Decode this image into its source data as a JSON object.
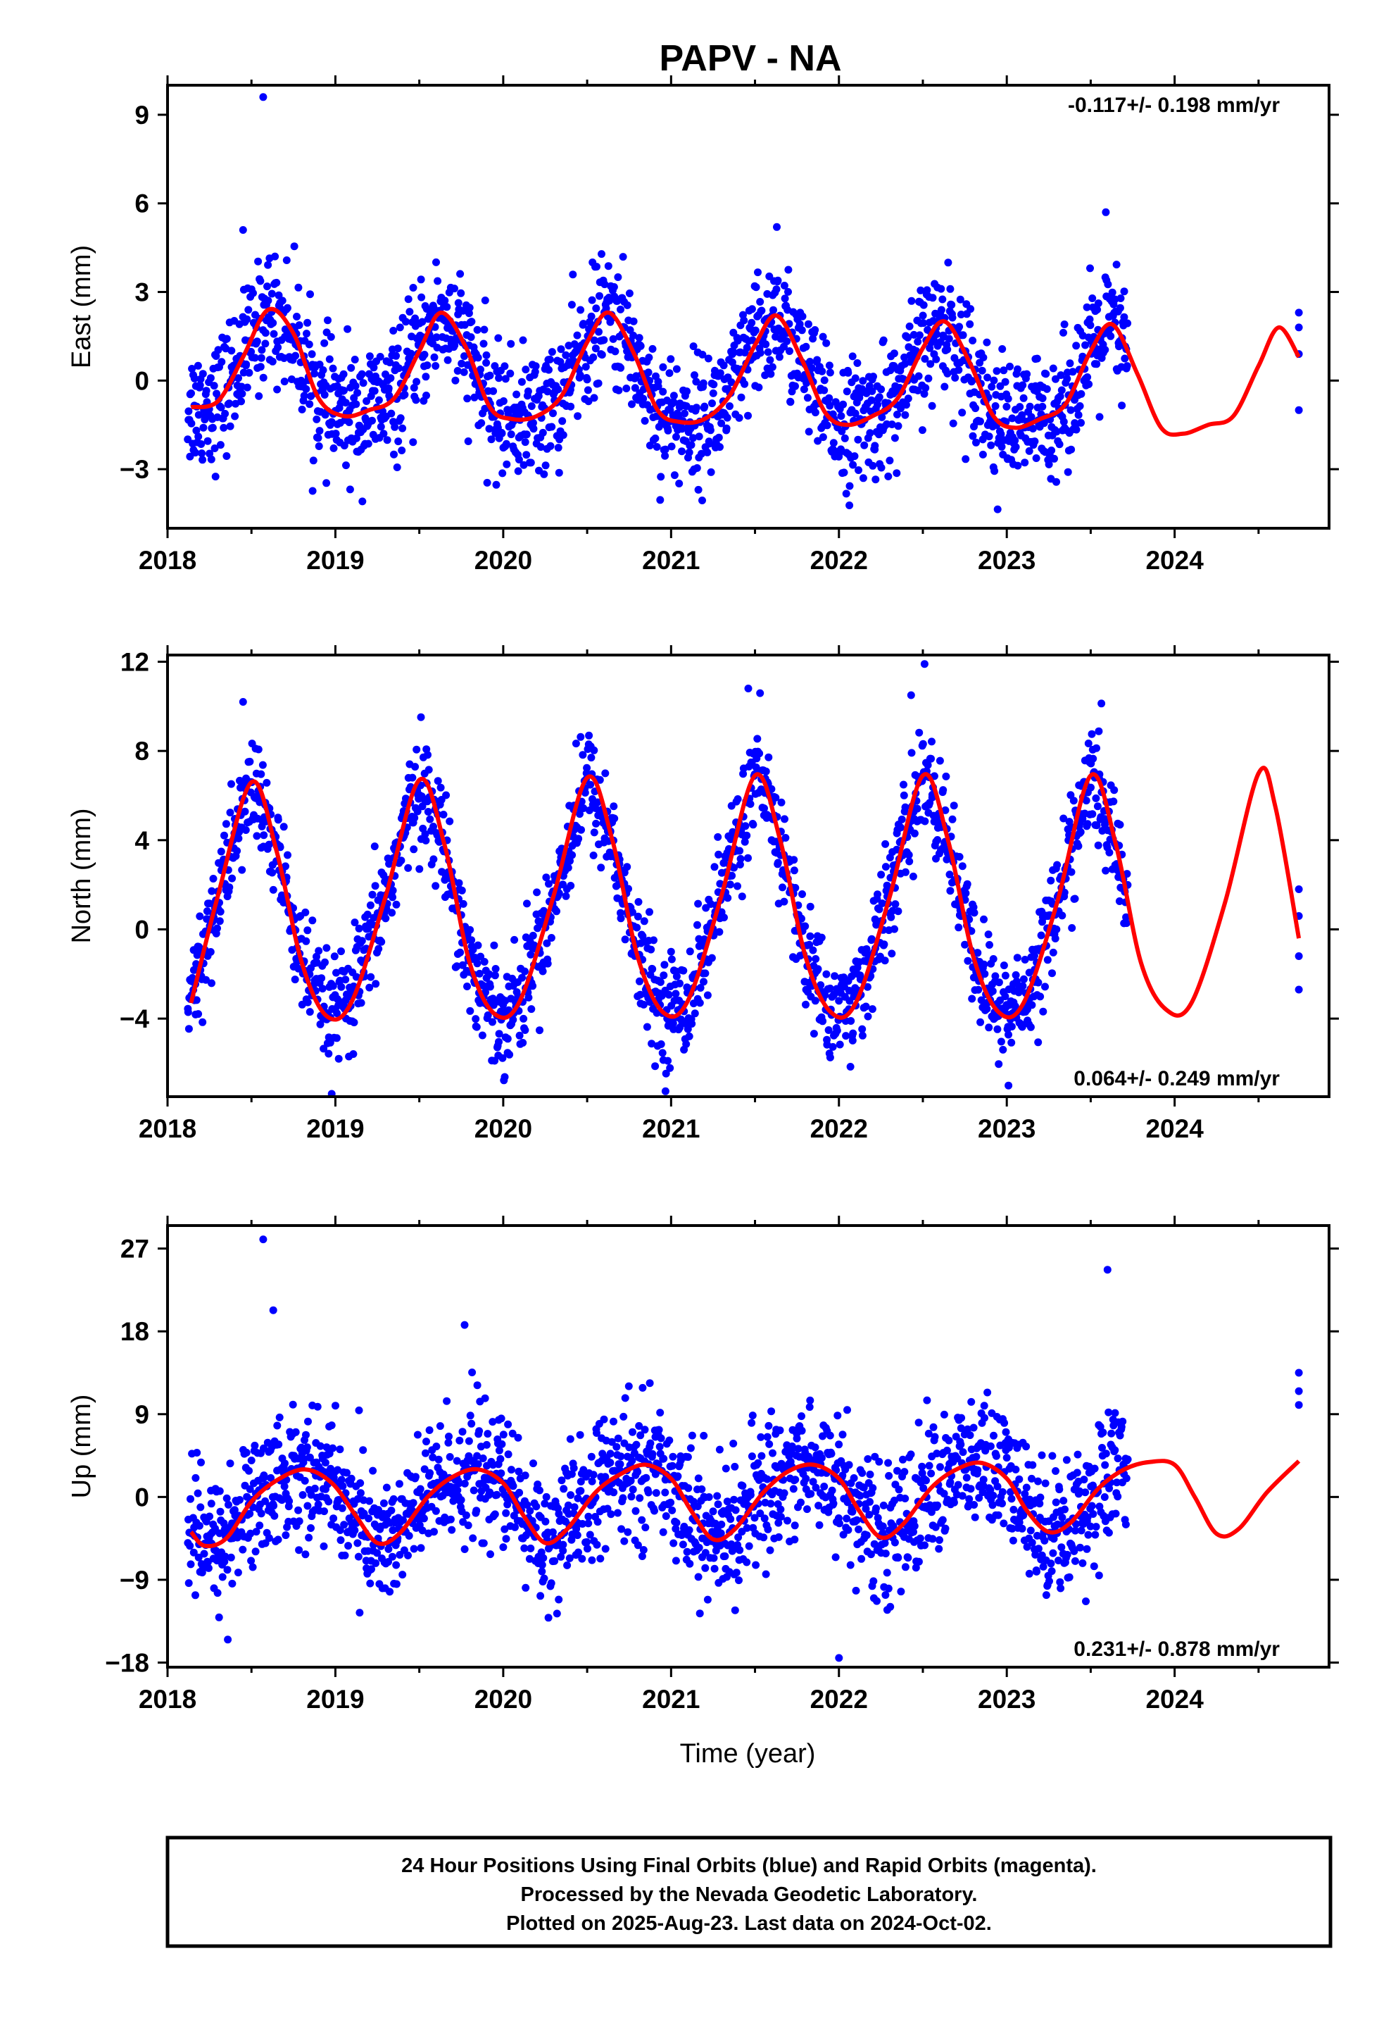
{
  "title": "PAPV - NA",
  "xlabel": "Time (year)",
  "footer": {
    "line1": "24 Hour Positions Using Final Orbits (blue) and Rapid Orbits (magenta).",
    "line2": "Processed by the Nevada Geodetic Laboratory.",
    "line3": "Plotted on 2025-Aug-23. Last data on 2024-Oct-02."
  },
  "colors": {
    "points": "#0000ff",
    "fit": "#ff0000",
    "frame": "#000000"
  },
  "chart_data": [
    {
      "type": "scatter",
      "ylabel": "East (mm)",
      "trend_label": "-0.117+/- 0.198 mm/yr",
      "trend_position": "top-right",
      "xlim": [
        2018.0,
        2024.92
      ],
      "ylim": [
        -5,
        10
      ],
      "xticks": [
        2018,
        2019,
        2020,
        2021,
        2022,
        2023,
        2024
      ],
      "yticks": [
        -3,
        0,
        3,
        6,
        9
      ],
      "data_span": [
        2018.12,
        2023.72
      ],
      "late_points": [
        [
          2024.74,
          2.3
        ],
        [
          2024.74,
          1.8
        ],
        [
          2024.74,
          0.9
        ],
        [
          2024.74,
          -1.0
        ]
      ],
      "outliers": [
        [
          2018.57,
          9.6
        ],
        [
          2018.45,
          5.1
        ],
        [
          2021.63,
          5.2
        ],
        [
          2023.59,
          5.7
        ]
      ],
      "fit": {
        "x": [
          2018.14,
          2018.3,
          2018.45,
          2018.6,
          2018.75,
          2018.9,
          2019.05,
          2019.2,
          2019.35,
          2019.5,
          2019.63,
          2019.78,
          2019.92,
          2020.05,
          2020.2,
          2020.35,
          2020.5,
          2020.63,
          2020.78,
          2020.92,
          2021.05,
          2021.2,
          2021.35,
          2021.5,
          2021.63,
          2021.78,
          2021.92,
          2022.05,
          2022.2,
          2022.35,
          2022.5,
          2022.63,
          2022.78,
          2022.92,
          2023.05,
          2023.2,
          2023.35,
          2023.5,
          2023.63,
          2023.78,
          2023.92,
          2024.05,
          2024.2,
          2024.35,
          2024.5,
          2024.62,
          2024.74
        ],
        "y": [
          -0.9,
          -0.7,
          0.8,
          2.4,
          1.6,
          -0.6,
          -1.2,
          -1.0,
          -0.6,
          1.0,
          2.3,
          1.1,
          -0.9,
          -1.3,
          -1.2,
          -0.5,
          1.3,
          2.3,
          0.9,
          -1.0,
          -1.4,
          -1.3,
          -0.5,
          1.2,
          2.2,
          0.7,
          -1.1,
          -1.5,
          -1.2,
          -0.6,
          1.1,
          2.0,
          0.6,
          -1.2,
          -1.6,
          -1.3,
          -0.8,
          1.0,
          1.9,
          0.2,
          -1.6,
          -1.8,
          -1.5,
          -1.2,
          0.5,
          1.8,
          0.8
        ]
      }
    },
    {
      "type": "scatter",
      "ylabel": "North (mm)",
      "trend_label": "0.064+/- 0.249 mm/yr",
      "trend_position": "bottom-right",
      "xlim": [
        2018.0,
        2024.92
      ],
      "ylim": [
        -7.5,
        12.3
      ],
      "xticks": [
        2018,
        2019,
        2020,
        2021,
        2022,
        2023,
        2024
      ],
      "yticks": [
        -4,
        0,
        4,
        8,
        12
      ],
      "data_span": [
        2018.12,
        2023.72
      ],
      "late_points": [
        [
          2024.74,
          1.8
        ],
        [
          2024.74,
          0.6
        ],
        [
          2024.74,
          -1.2
        ],
        [
          2024.74,
          -2.7
        ]
      ],
      "outliers": [
        [
          2018.45,
          10.2
        ],
        [
          2021.46,
          10.8
        ],
        [
          2022.51,
          11.9
        ],
        [
          2022.43,
          10.5
        ],
        [
          2023.01,
          -7.0
        ]
      ],
      "fit": {
        "x": [
          2018.14,
          2018.3,
          2018.5,
          2018.65,
          2018.8,
          2018.95,
          2019.1,
          2019.3,
          2019.5,
          2019.65,
          2019.8,
          2019.95,
          2020.1,
          2020.3,
          2020.5,
          2020.65,
          2020.8,
          2020.95,
          2021.1,
          2021.3,
          2021.5,
          2021.65,
          2021.8,
          2021.95,
          2022.1,
          2022.3,
          2022.5,
          2022.65,
          2022.8,
          2022.95,
          2023.1,
          2023.3,
          2023.5,
          2023.65,
          2023.8,
          2023.95,
          2024.1,
          2024.3,
          2024.5,
          2024.6,
          2024.74
        ],
        "y": [
          -3.3,
          1.5,
          6.6,
          3.5,
          -1.5,
          -3.9,
          -3.2,
          1.5,
          6.7,
          3.8,
          -1.5,
          -3.8,
          -3.2,
          1.5,
          6.8,
          4.0,
          -1.2,
          -3.7,
          -3.2,
          1.5,
          6.9,
          4.0,
          -1.2,
          -3.7,
          -3.3,
          1.4,
          6.9,
          4.0,
          -1.2,
          -3.7,
          -3.3,
          1.2,
          6.9,
          3.8,
          -1.5,
          -3.6,
          -3.3,
          1.2,
          7.0,
          5.5,
          -0.4
        ]
      }
    },
    {
      "type": "scatter",
      "ylabel": "Up (mm)",
      "trend_label": "0.231+/- 0.878 mm/yr",
      "trend_position": "bottom-right",
      "xlim": [
        2018.0,
        2024.92
      ],
      "ylim": [
        -18.5,
        29.5
      ],
      "xticks": [
        2018,
        2019,
        2020,
        2021,
        2022,
        2023,
        2024
      ],
      "yticks": [
        -18,
        -9,
        0,
        9,
        18,
        27
      ],
      "data_span": [
        2018.12,
        2023.72
      ],
      "late_points": [
        [
          2024.74,
          13.5
        ],
        [
          2024.74,
          11.5
        ],
        [
          2024.74,
          10.0
        ]
      ],
      "outliers": [
        [
          2018.57,
          28.0
        ],
        [
          2018.63,
          20.3
        ],
        [
          2019.77,
          18.7
        ],
        [
          2023.6,
          24.7
        ],
        [
          2022.0,
          -17.5
        ]
      ],
      "fit": {
        "x": [
          2018.14,
          2018.22,
          2018.35,
          2018.5,
          2018.65,
          2018.82,
          2018.98,
          2019.12,
          2019.25,
          2019.38,
          2019.55,
          2019.7,
          2019.85,
          2020.0,
          2020.12,
          2020.25,
          2020.38,
          2020.55,
          2020.7,
          2020.85,
          2021.0,
          2021.12,
          2021.25,
          2021.38,
          2021.55,
          2021.7,
          2021.85,
          2022.0,
          2022.12,
          2022.25,
          2022.38,
          2022.55,
          2022.7,
          2022.85,
          2023.0,
          2023.12,
          2023.25,
          2023.38,
          2023.55,
          2023.7,
          2023.85,
          2024.0,
          2024.12,
          2024.25,
          2024.38,
          2024.55,
          2024.74
        ],
        "y": [
          -3.8,
          -5.3,
          -4.5,
          -0.5,
          1.8,
          3.0,
          1.5,
          -2.0,
          -5.0,
          -4.0,
          0.0,
          2.2,
          3.0,
          1.5,
          -2.0,
          -5.0,
          -3.5,
          0.5,
          2.5,
          3.5,
          2.0,
          -1.5,
          -4.6,
          -3.5,
          0.5,
          2.8,
          3.5,
          2.0,
          -1.5,
          -4.4,
          -3.0,
          1.0,
          3.0,
          3.7,
          2.0,
          -1.5,
          -3.8,
          -2.8,
          1.0,
          3.0,
          3.8,
          3.5,
          0.0,
          -4.0,
          -3.5,
          0.5,
          3.9
        ]
      }
    }
  ]
}
